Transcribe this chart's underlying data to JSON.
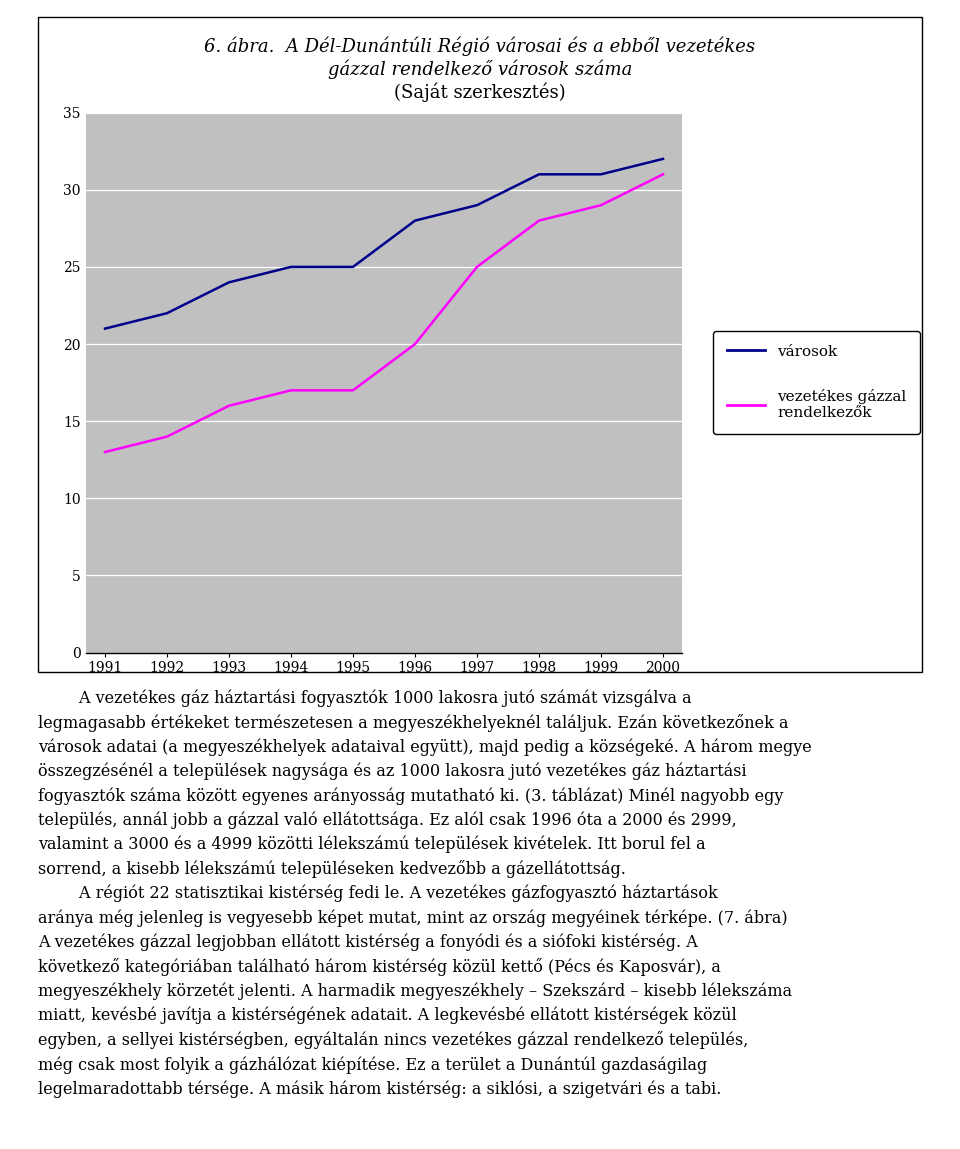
{
  "title_line1": "6. ábra.  A Dél-Dunántúli Régió városai és a ebből vezetékes",
  "title_line2": "gázzal rendelkező városok száma",
  "title_line3": "(Saját szerkesztés)",
  "years": [
    1991,
    1992,
    1993,
    1994,
    1995,
    1996,
    1997,
    1998,
    1999,
    2000
  ],
  "varosok": [
    21,
    22,
    24,
    25,
    25,
    28,
    29,
    31,
    31,
    32
  ],
  "vezetekes": [
    13,
    14,
    16,
    17,
    17,
    20,
    25,
    28,
    29,
    31
  ],
  "line1_color": "#00008B",
  "line2_color": "#FF00FF",
  "plot_bg_color": "#C0C0C0",
  "ylim_min": 0,
  "ylim_max": 35,
  "yticks": [
    0,
    5,
    10,
    15,
    20,
    25,
    30,
    35
  ],
  "legend_label1": "városok",
  "legend_label2": "vezetékes gázzal\nrendelkezők",
  "para1": "    A vezetékes gáz háztartási fogyasztók 1000 lakosra jutó számát vizsgálva a legmagasabb értékeket természetesen a megyeszékhelyeknél találjuk. Ezán következőnek a városok adatai (a megyeszékhelyek adataival együtt), majd pedig a községeké. A három megye összegzésénél a települések nagysága és az 1000 lakosra jutó vezetékes gáz háztartási fogyasztók száma között egyenes arányosság mutatható ki. (3. táblázat) Minél nagyobb egy település, annál jobb a gázzal való ellátottsága. Ez alól csak 1996 óta a 2000 és 2999, valamint a 3000 és a 4999 közötti lélekszámú települések kivételek. Itt borul fel a sorrend, a kisebb lélekszámú településeken kedvezőbb a gázellátottság.",
  "para2": "    A régiót 22 statisztikai kistérség fedi le. A vezetékes gázfogyasztó háztartások aránya még jelenleg is vegyesebb képet mutat, mint az ország megyéinek térképe. (7. ábra) A vezetékes gázzal legjobban ellátott kistérség a fonyódi és a siófoki kistérség. A következő kategóriában található három kistérség közül kettő (Pécs és Kaposvár), a megyeszékhely körzetét jelenti. A harmadik megyeszékhely – Szekszárd – kisebb lélekszáma miatt, kevésbé javítja a kistérségének adatait. A legkevésbé ellátott kistérségek közül egyben, a sellyei kistérségben, egyáltalán nincs vezetékes gázzal rendelkező település, még csak most folyik a gázhálózat kiépítése. Ez a terület a Dunántúl gazdaságilag legelmaradottabb térsége. A másik három kistérség: a siklósi, a szigetvári és a tabi.",
  "fig_width": 9.6,
  "fig_height": 11.49,
  "dpi": 100
}
